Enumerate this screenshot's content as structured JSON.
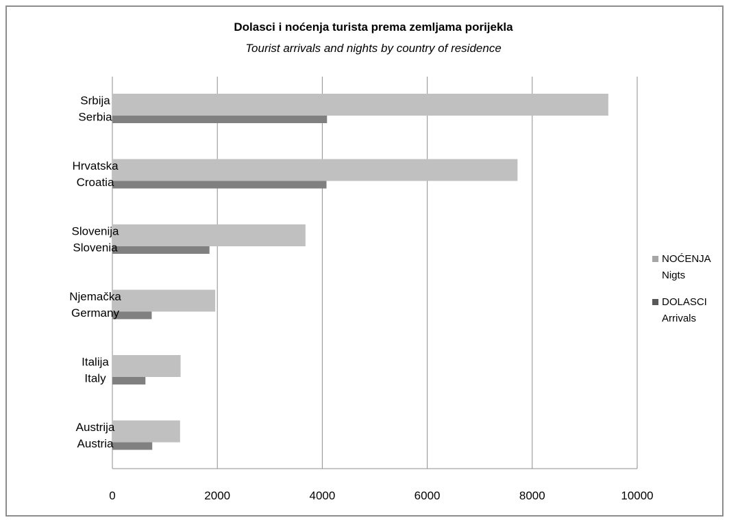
{
  "chart_data": {
    "type": "bar",
    "orientation": "horizontal",
    "title": "Dolasci i noćenja turista prema zemljama porijekla",
    "subtitle": "Tourist arrivals and nights by country of residence",
    "categories": [
      [
        "Srbija",
        "Serbia"
      ],
      [
        "Hrvatska",
        "Croatia"
      ],
      [
        "Slovenija",
        "Slovenia"
      ],
      [
        "Njemačka",
        "Germany"
      ],
      [
        "Italija",
        "Italy"
      ],
      [
        "Austrija",
        "Austria"
      ]
    ],
    "series": [
      {
        "name": [
          "NOĆENJA",
          "Nigts"
        ],
        "color": "#c0c0c0",
        "values": [
          9450,
          7720,
          3680,
          1960,
          1300,
          1290
        ]
      },
      {
        "name": [
          "DOLASCI",
          "Arrivals"
        ],
        "color": "#808080",
        "values": [
          4090,
          4080,
          1850,
          750,
          630,
          760
        ]
      }
    ],
    "xlim": [
      0,
      10000
    ],
    "xticks": [
      "0",
      "2000",
      "4000",
      "6000",
      "8000",
      "10000"
    ],
    "grid": "vertical",
    "legend": "right",
    "colors": {
      "legend_nights": "#a6a6a6",
      "legend_arrivals": "#595959",
      "gridline": "#8c8c8c",
      "axis": "#8c8c8c"
    }
  }
}
